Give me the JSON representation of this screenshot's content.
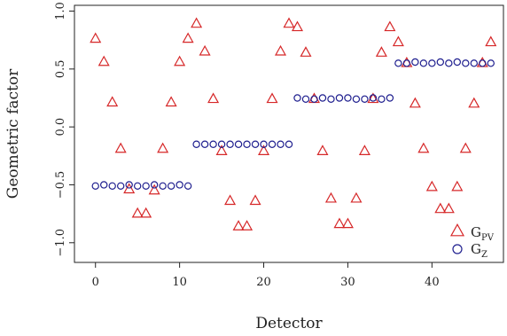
{
  "chart_data": {
    "type": "scatter",
    "xlabel": "Detector",
    "ylabel": "Geometric factor",
    "xlim": [
      -2.5,
      48.5
    ],
    "ylim": [
      -1.17,
      1.05
    ],
    "x_ticks": [
      0,
      10,
      20,
      30,
      40
    ],
    "y_ticks": [
      -1.0,
      -0.5,
      0.0,
      0.5,
      1.0
    ],
    "x_tick_labels": [
      "0",
      "10",
      "20",
      "30",
      "40"
    ],
    "y_tick_labels": [
      "−1.0",
      "−0.5",
      "0.0",
      "0.5",
      "1.0"
    ],
    "grid": false,
    "legend_position": "bottom-right",
    "series": [
      {
        "name": "G_PV",
        "label_main": "G",
        "label_sub": "PV",
        "marker": "triangle",
        "color": "#d62728",
        "x": [
          0,
          1,
          2,
          3,
          4,
          5,
          6,
          7,
          8,
          9,
          10,
          11,
          12,
          13,
          14,
          15,
          16,
          17,
          18,
          19,
          20,
          21,
          22,
          23,
          24,
          25,
          26,
          27,
          28,
          29,
          30,
          31,
          32,
          33,
          34,
          35,
          36,
          37,
          38,
          39,
          40,
          41,
          42,
          43,
          44,
          45,
          46,
          47
        ],
        "y": [
          0.76,
          0.56,
          0.21,
          -0.19,
          -0.54,
          -0.75,
          -0.75,
          -0.55,
          -0.19,
          0.21,
          0.56,
          0.76,
          0.89,
          0.65,
          0.24,
          -0.21,
          -0.64,
          -0.86,
          -0.86,
          -0.64,
          -0.21,
          0.24,
          0.65,
          0.89,
          0.86,
          0.64,
          0.24,
          -0.21,
          -0.62,
          -0.84,
          -0.84,
          -0.62,
          -0.21,
          0.24,
          0.64,
          0.86,
          0.73,
          0.55,
          0.2,
          -0.19,
          -0.52,
          -0.71,
          -0.71,
          -0.52,
          -0.19,
          0.2,
          0.55,
          0.73
        ]
      },
      {
        "name": "G_Z",
        "label_main": "G",
        "label_sub": "Z",
        "marker": "circle",
        "color": "#1f1f8f",
        "x": [
          0,
          1,
          2,
          3,
          4,
          5,
          6,
          7,
          8,
          9,
          10,
          11,
          12,
          13,
          14,
          15,
          16,
          17,
          18,
          19,
          20,
          21,
          22,
          23,
          24,
          25,
          26,
          27,
          28,
          29,
          30,
          31,
          32,
          33,
          34,
          35,
          36,
          37,
          38,
          39,
          40,
          41,
          42,
          43,
          44,
          45,
          46,
          47
        ],
        "y": [
          -0.51,
          -0.5,
          -0.51,
          -0.51,
          -0.5,
          -0.51,
          -0.51,
          -0.5,
          -0.51,
          -0.51,
          -0.5,
          -0.51,
          -0.15,
          -0.15,
          -0.15,
          -0.15,
          -0.15,
          -0.15,
          -0.15,
          -0.15,
          -0.15,
          -0.15,
          -0.15,
          -0.15,
          0.25,
          0.24,
          0.24,
          0.25,
          0.24,
          0.25,
          0.25,
          0.24,
          0.24,
          0.25,
          0.24,
          0.25,
          0.55,
          0.55,
          0.56,
          0.55,
          0.55,
          0.56,
          0.55,
          0.56,
          0.55,
          0.55,
          0.55,
          0.55
        ]
      }
    ]
  }
}
